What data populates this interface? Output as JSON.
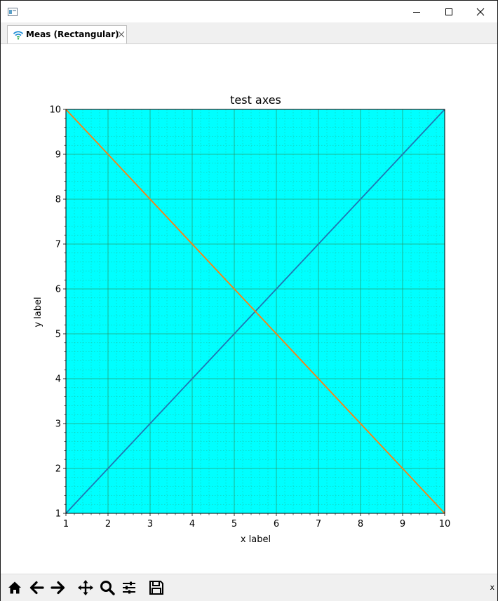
{
  "window": {
    "title": "",
    "minimize_label": "minimize",
    "maximize_label": "maximize",
    "close_label": "close"
  },
  "tab": {
    "label": "Meas (Rectangular)"
  },
  "chart_data": {
    "type": "line",
    "title": "test axes",
    "xlabel": "x label",
    "ylabel": "y label",
    "xlim": [
      1,
      10
    ],
    "ylim": [
      1,
      10
    ],
    "xticks": [
      1,
      2,
      3,
      4,
      5,
      6,
      7,
      8,
      9,
      10
    ],
    "yticks": [
      1,
      2,
      3,
      4,
      5,
      6,
      7,
      8,
      9,
      10
    ],
    "grid": true,
    "minor_grid": true,
    "background": "#00ffff",
    "grid_color": "#2e8b57",
    "series": [
      {
        "color": "#1f77b4",
        "x": [
          1,
          2,
          3,
          4,
          5,
          6,
          7,
          8,
          9,
          10
        ],
        "y": [
          1,
          2,
          3,
          4,
          5,
          6,
          7,
          8,
          9,
          10
        ]
      },
      {
        "color": "#ff7f0e",
        "x": [
          1,
          2,
          3,
          4,
          5,
          6,
          7,
          8,
          9,
          10
        ],
        "y": [
          10,
          9,
          8,
          7,
          6,
          5,
          4,
          3,
          2,
          1
        ]
      }
    ]
  },
  "toolbar": {
    "buttons": [
      {
        "name": "home",
        "icon": "home-icon"
      },
      {
        "name": "back",
        "icon": "arrow-left-icon"
      },
      {
        "name": "forward",
        "icon": "arrow-right-icon"
      },
      {
        "name": "pan",
        "icon": "move-icon"
      },
      {
        "name": "zoom",
        "icon": "search-icon"
      },
      {
        "name": "configure",
        "icon": "sliders-icon"
      },
      {
        "name": "save",
        "icon": "save-icon"
      }
    ],
    "coords_text": "x"
  }
}
